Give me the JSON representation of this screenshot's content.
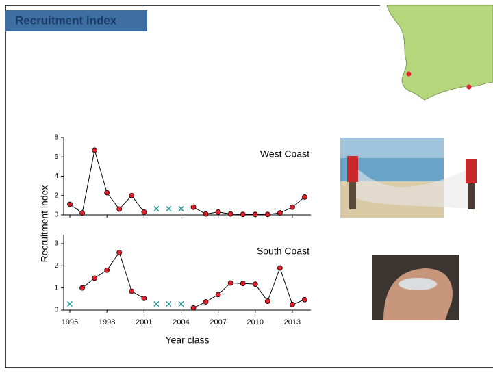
{
  "header": {
    "title": "Recruitment index"
  },
  "y_label": "Recruitment index",
  "chart_data": [
    {
      "type": "line",
      "title": "West Coast",
      "x": [
        1995,
        1996,
        1997,
        1998,
        1999,
        2000,
        2001,
        2002,
        2003,
        2004,
        2005,
        2006,
        2007,
        2008,
        2009,
        2010,
        2011,
        2012,
        2013,
        2014
      ],
      "values": [
        1.1,
        0.2,
        6.7,
        2.3,
        0.6,
        2.0,
        0.3,
        null,
        null,
        null,
        0.8,
        0.1,
        0.3,
        0.1,
        0.05,
        0.05,
        0.05,
        0.2,
        0.8,
        1.85
      ],
      "no_data_x": [
        2002,
        2003,
        2004
      ],
      "color": "#000000",
      "marker_color": "#e0202a",
      "no_data_color": "#1a9a9a",
      "xlim": [
        1994.5,
        2014.5
      ],
      "xticks": [
        1995,
        1998,
        2001,
        2004,
        2007,
        2010,
        2013
      ],
      "ylim": [
        0,
        8
      ],
      "yticks": [
        0,
        2,
        4,
        6,
        8
      ]
    },
    {
      "type": "line",
      "title": "South Coast",
      "xlabel": "Year class",
      "x": [
        1995,
        1996,
        1997,
        1998,
        1999,
        2000,
        2001,
        2002,
        2003,
        2004,
        2005,
        2006,
        2007,
        2008,
        2009,
        2010,
        2011,
        2012,
        2013,
        2014
      ],
      "values": [
        null,
        1.0,
        1.44,
        1.8,
        2.6,
        0.85,
        0.53,
        null,
        null,
        null,
        0.1,
        0.37,
        0.7,
        1.22,
        1.2,
        1.17,
        0.4,
        1.9,
        0.25,
        0.47
      ],
      "no_data_x": [
        1995,
        2002,
        2003,
        2004
      ],
      "color": "#000000",
      "marker_color": "#e0202a",
      "no_data_color": "#1a9a9a",
      "xlim": [
        1994.5,
        2014.5
      ],
      "xticks": [
        1995,
        1998,
        2001,
        2004,
        2007,
        2010,
        2013
      ],
      "ylim": [
        0,
        3.4
      ],
      "yticks": [
        0,
        1,
        2,
        3
      ]
    }
  ]
}
